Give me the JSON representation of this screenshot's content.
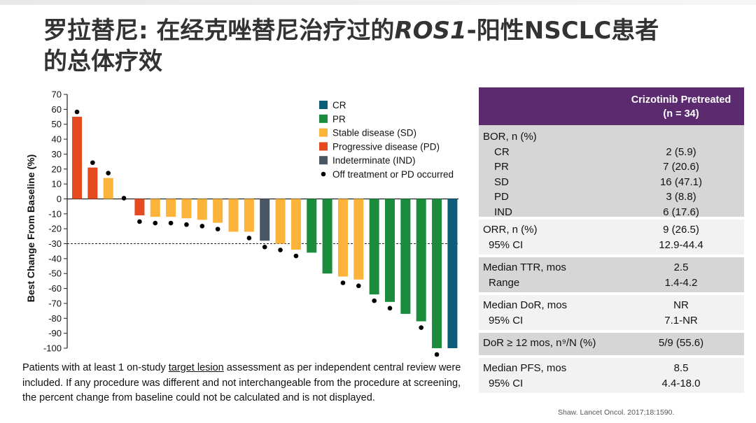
{
  "title_line1_a": "罗拉替尼: 在经克唑替尼治疗过的",
  "title_line1_b": "ROS1",
  "title_line1_c": "-阳性NSCLC患者",
  "title_line2": "的总体疗效",
  "chart_data": {
    "type": "bar",
    "ylabel": "Best Change From Baseline (%)",
    "ylim": [
      -100,
      70
    ],
    "yticks": [
      70,
      60,
      50,
      40,
      30,
      20,
      10,
      0,
      -10,
      -20,
      -30,
      -40,
      -50,
      -60,
      -70,
      -80,
      -90,
      -100
    ],
    "reference_line": -30,
    "legend": [
      {
        "key": "CR",
        "label": "CR",
        "color": "#0d5c78"
      },
      {
        "key": "PR",
        "label": "PR",
        "color": "#1a8c3c"
      },
      {
        "key": "SD",
        "label": "Stable disease (SD)",
        "color": "#fbb339"
      },
      {
        "key": "PD",
        "label": "Progressive disease (PD)",
        "color": "#e4491f"
      },
      {
        "key": "IND",
        "label": "Indeterminate (IND)",
        "color": "#4a5866"
      }
    ],
    "legend_dot_label": "Off treatment or PD occurred",
    "legend_position": "top-right",
    "bars": [
      {
        "value": 55,
        "cat": "PD",
        "dot": true
      },
      {
        "value": 21,
        "cat": "PD",
        "dot": true
      },
      {
        "value": 14,
        "cat": "SD",
        "dot": true
      },
      {
        "value": 0,
        "cat": "SD",
        "dot": true
      },
      {
        "value": -11,
        "cat": "PD",
        "dot": true
      },
      {
        "value": -12,
        "cat": "SD",
        "dot": true
      },
      {
        "value": -12,
        "cat": "SD",
        "dot": true
      },
      {
        "value": -13,
        "cat": "SD",
        "dot": true
      },
      {
        "value": -14,
        "cat": "SD",
        "dot": true
      },
      {
        "value": -16,
        "cat": "SD",
        "dot": true
      },
      {
        "value": -22,
        "cat": "SD",
        "dot": false
      },
      {
        "value": -22,
        "cat": "SD",
        "dot": true
      },
      {
        "value": -28,
        "cat": "IND",
        "dot": true
      },
      {
        "value": -30,
        "cat": "SD",
        "dot": true
      },
      {
        "value": -34,
        "cat": "SD",
        "dot": true
      },
      {
        "value": -36,
        "cat": "PR",
        "dot": false
      },
      {
        "value": -50,
        "cat": "PR",
        "dot": false
      },
      {
        "value": -52,
        "cat": "SD",
        "dot": true
      },
      {
        "value": -54,
        "cat": "SD",
        "dot": true
      },
      {
        "value": -64,
        "cat": "PR",
        "dot": true
      },
      {
        "value": -69,
        "cat": "PR",
        "dot": true
      },
      {
        "value": -77,
        "cat": "PR",
        "dot": false
      },
      {
        "value": -82,
        "cat": "PR",
        "dot": true
      },
      {
        "value": -100,
        "cat": "PR",
        "dot": true
      },
      {
        "value": -100,
        "cat": "CR",
        "dot": false
      }
    ]
  },
  "footnote": {
    "p1": "Patients with at least 1 on-study ",
    "link": "target lesion",
    "p2": " assessment as per independent central review were included. If any procedure was different and not interchangeable from the procedure at screening, the percent change from baseline could not be calculated and is not displayed."
  },
  "table": {
    "header_l1": "Crizotinib Pretreated",
    "header_l2": "(n = 34)",
    "sections": [
      {
        "shade": "gray",
        "rows": [
          {
            "label": "BOR, n (%)",
            "value": "",
            "sub": false
          },
          {
            "label": "CR",
            "value": "2 (5.9)",
            "sub": true
          },
          {
            "label": "PR",
            "value": "7 (20.6)",
            "sub": true
          },
          {
            "label": "SD",
            "value": "16 (47.1)",
            "sub": true
          },
          {
            "label": "PD",
            "value": "3 (8.8)",
            "sub": true
          },
          {
            "label": "IND",
            "value": "6 (17.6)",
            "sub": true
          }
        ]
      },
      {
        "shade": "light",
        "rows": [
          {
            "label": "ORR, n (%)",
            "value": "9 (26.5)",
            "sub": false
          },
          {
            "label": "95% CI",
            "value": "12.9-44.4",
            "sub2": true
          }
        ]
      },
      {
        "shade": "gray",
        "rows": [
          {
            "label": "Median TTR, mos",
            "value": "2.5",
            "sub": false
          },
          {
            "label": "Range",
            "value": "1.4-4.2",
            "sub2": true
          }
        ]
      },
      {
        "shade": "light",
        "rows": [
          {
            "label": "Median DoR, mos",
            "value": "NR",
            "sub": false
          },
          {
            "label": "95% CI",
            "value": "7.1-NR",
            "sub2": true
          }
        ]
      },
      {
        "shade": "gray",
        "rows": [
          {
            "label": "DoR ≥ 12 mos, n⁹/N (%)",
            "value": "5/9 (55.6)",
            "sub": false
          }
        ]
      },
      {
        "shade": "light",
        "rows": [
          {
            "label": "Median PFS, mos",
            "value": "8.5",
            "sub": false
          },
          {
            "label": "95% CI",
            "value": "4.4-18.0",
            "sub2": true
          }
        ]
      }
    ]
  },
  "citation": "Shaw. Lancet Oncol. 2017;18:1590."
}
